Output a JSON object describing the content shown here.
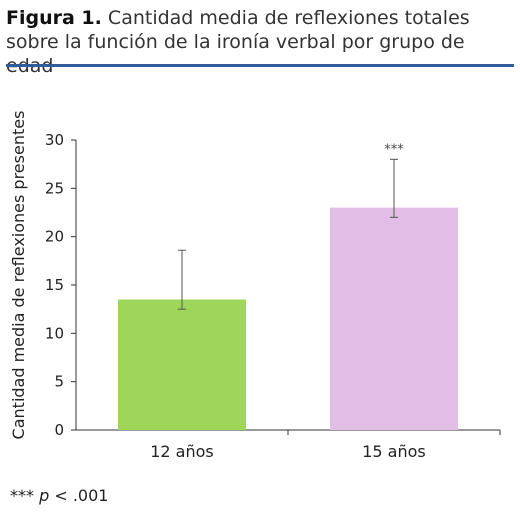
{
  "caption": {
    "label": "Figura 1.",
    "text": "Cantidad media de reflexiones totales sobre la función de la ironía verbal por grupo de edad"
  },
  "footnote": {
    "stars": "***",
    "p": "p",
    "rest": "< .001"
  },
  "chart_data": {
    "type": "bar",
    "title": "",
    "ylabel": "Cantidad media de reflexiones presentes",
    "xlabel": "",
    "ylim": [
      0,
      30
    ],
    "yticks": [
      0,
      5,
      10,
      15,
      20,
      25,
      30
    ],
    "categories": [
      "12 años",
      "15 años"
    ],
    "values": [
      13.5,
      23.0
    ],
    "error_low": [
      12.5,
      22.0
    ],
    "error_high": [
      18.6,
      28.0
    ],
    "colors": [
      "#9ed65a",
      "#e2bde6"
    ],
    "annotations": [
      "",
      "***"
    ],
    "grid": false,
    "legend": "none"
  }
}
